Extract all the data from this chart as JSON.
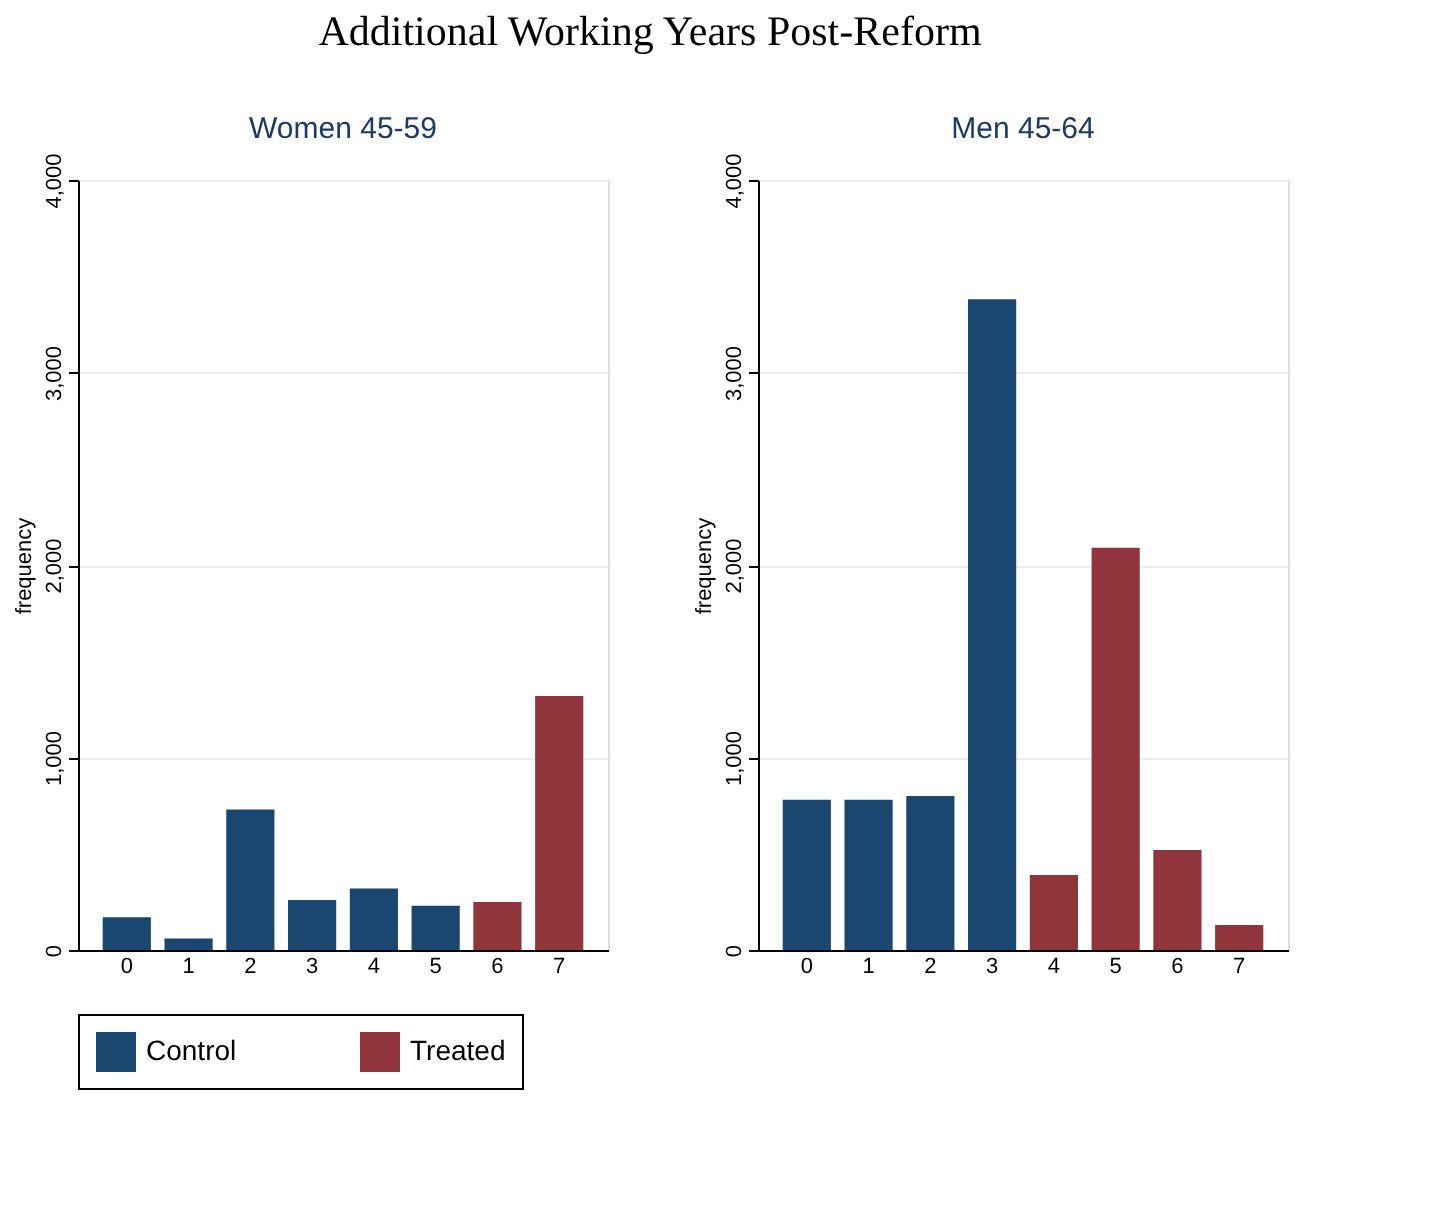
{
  "chart_data": [
    {
      "type": "other",
      "title": "Additional Working Years Post-Reform"
    },
    {
      "type": "bar",
      "title": "Women 45-59",
      "ylabel": "frequency",
      "categories": [
        "0",
        "1",
        "2",
        "3",
        "4",
        "5",
        "6",
        "7"
      ],
      "series": [
        {
          "name": "Control",
          "color": "#1a476f",
          "values": [
            170,
            60,
            730,
            260,
            320,
            230,
            null,
            null
          ]
        },
        {
          "name": "Treated",
          "color": "#90353b",
          "values": [
            null,
            null,
            null,
            null,
            null,
            null,
            250,
            1320
          ]
        }
      ],
      "ylim": [
        0,
        4000
      ],
      "yticks": [
        0,
        {
          "value": 1000,
          "label": "1,000"
        },
        {
          "value": 2000,
          "label": "2,000"
        },
        {
          "value": 3000,
          "label": "3,000"
        },
        {
          "value": 4000,
          "label": "4,000"
        }
      ],
      "grid": "y",
      "legend": "bottom"
    },
    {
      "type": "bar",
      "title": "Men 45-64",
      "ylabel": "frequency",
      "categories": [
        "0",
        "1",
        "2",
        "3",
        "4",
        "5",
        "6",
        "7"
      ],
      "series": [
        {
          "name": "Control",
          "color": "#1a476f",
          "values": [
            780,
            780,
            800,
            3380,
            null,
            null,
            null,
            null
          ]
        },
        {
          "name": "Treated",
          "color": "#90353b",
          "values": [
            null,
            null,
            null,
            null,
            390,
            2090,
            520,
            130
          ]
        }
      ],
      "ylim": [
        0,
        4000
      ],
      "yticks": [
        0,
        {
          "value": 1000,
          "label": "1,000"
        },
        {
          "value": 2000,
          "label": "2,000"
        },
        {
          "value": 3000,
          "label": "3,000"
        },
        {
          "value": 4000,
          "label": "4,000"
        }
      ],
      "grid": "y",
      "legend": "bottom"
    }
  ]
}
